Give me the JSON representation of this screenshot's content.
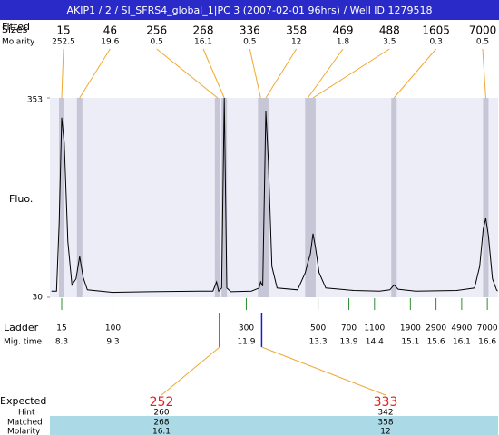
{
  "title": "AKIP1 / 2 / SI_SFRS4_global_1|PC 3 (2007-02-01 96hrs) / Well ID 1279518",
  "chart_data": {
    "type": "electropherogram",
    "ylabel": "Fluo.",
    "ylim": [
      30,
      353
    ],
    "yticks": [
      30,
      353
    ],
    "xlim": [
      8.07,
      16.81
    ],
    "trace": {
      "x": [
        8.1,
        8.2,
        8.25,
        8.3,
        8.35,
        8.42,
        8.5,
        8.58,
        8.65,
        8.72,
        8.8,
        9.3,
        10.0,
        11.0,
        11.25,
        11.32,
        11.36,
        11.42,
        11.47,
        11.52,
        11.6,
        12.0,
        12.15,
        12.18,
        12.22,
        12.28,
        12.33,
        12.4,
        12.5,
        12.9,
        13.05,
        13.1,
        13.15,
        13.2,
        13.25,
        13.32,
        13.45,
        14.0,
        14.5,
        14.7,
        14.78,
        14.86,
        15.2,
        16.0,
        16.35,
        16.45,
        16.52,
        16.57,
        16.62,
        16.7,
        16.78,
        16.8
      ],
      "y": [
        40,
        40,
        150,
        321,
        280,
        120,
        50,
        60,
        96,
        62,
        42,
        38,
        39,
        40,
        40,
        55,
        40,
        45,
        353,
        45,
        39,
        40,
        45,
        55,
        48,
        331,
        250,
        80,
        45,
        42,
        70,
        86,
        100,
        133,
        110,
        70,
        45,
        41,
        40,
        42,
        50,
        43,
        40,
        41,
        45,
        80,
        140,
        158,
        130,
        60,
        42,
        40
      ]
    },
    "peaks": {
      "fitted_label": "Fitted",
      "sizes_label": "Sizes",
      "molarity_label": "Molarity",
      "sizes": [
        15,
        46,
        256,
        268,
        336,
        358,
        469,
        488,
        1605,
        7000
      ],
      "molarity": [
        252.5,
        19.6,
        0.5,
        16.1,
        0.5,
        12,
        1.8,
        3.5,
        0.3,
        0.5
      ],
      "times": [
        8.3,
        8.65,
        11.34,
        11.47,
        12.18,
        12.28,
        13.1,
        13.2,
        14.78,
        16.57
      ]
    },
    "ladder": {
      "label": "Ladder",
      "time_label": "Mig. time",
      "sizes": [
        15,
        100,
        300,
        500,
        700,
        1100,
        1900,
        2900,
        4900,
        7000
      ],
      "times": [
        8.3,
        9.3,
        11.9,
        13.3,
        13.9,
        14.4,
        15.1,
        15.6,
        16.1,
        16.6
      ]
    },
    "expected": {
      "expected_label": "Expected",
      "hint_label": "Hint",
      "matched_label": "Matched",
      "molarity_label": "Molarity",
      "expected": [
        252,
        333
      ],
      "hint": [
        260,
        342
      ],
      "matched": [
        268,
        358
      ],
      "molarity": [
        16.1,
        12
      ],
      "times": [
        11.38,
        12.2
      ]
    }
  }
}
